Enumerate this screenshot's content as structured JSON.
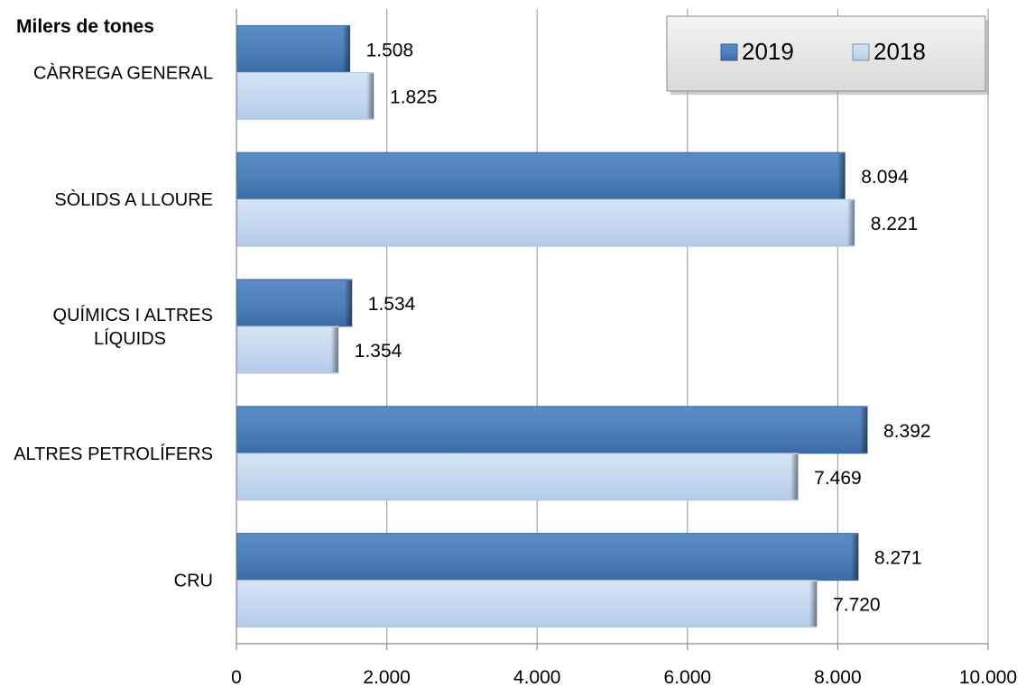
{
  "chart_data": {
    "type": "bar",
    "orientation": "horizontal",
    "unit_label": "Milers de tones",
    "categories": [
      [
        "CÀRREGA GENERAL"
      ],
      [
        "SÒLIDS A LLOURE"
      ],
      [
        "QUÍMICS I ALTRES",
        "LÍQUIDS"
      ],
      [
        "ALTRES PETROLÍFERS"
      ],
      [
        "CRU"
      ]
    ],
    "series": [
      {
        "name": "2019",
        "color": "#4F81BD",
        "values": [
          1508,
          8094,
          1534,
          8392,
          8271
        ],
        "labels": [
          "1.508",
          "8.094",
          "1.534",
          "8.392",
          "8.271"
        ]
      },
      {
        "name": "2018",
        "color": "#C6D9F1",
        "values": [
          1825,
          8221,
          1354,
          7469,
          7720
        ],
        "labels": [
          "1.825",
          "8.221",
          "1.354",
          "7.469",
          "7.720"
        ]
      }
    ],
    "xlim": [
      0,
      10000
    ],
    "ticks": [
      0,
      2000,
      4000,
      6000,
      8000,
      10000
    ],
    "tick_labels": [
      "0",
      "2.000",
      "4.000",
      "6.000",
      "8.000",
      "10.000"
    ],
    "grid": true,
    "legend_position": "top-right"
  }
}
